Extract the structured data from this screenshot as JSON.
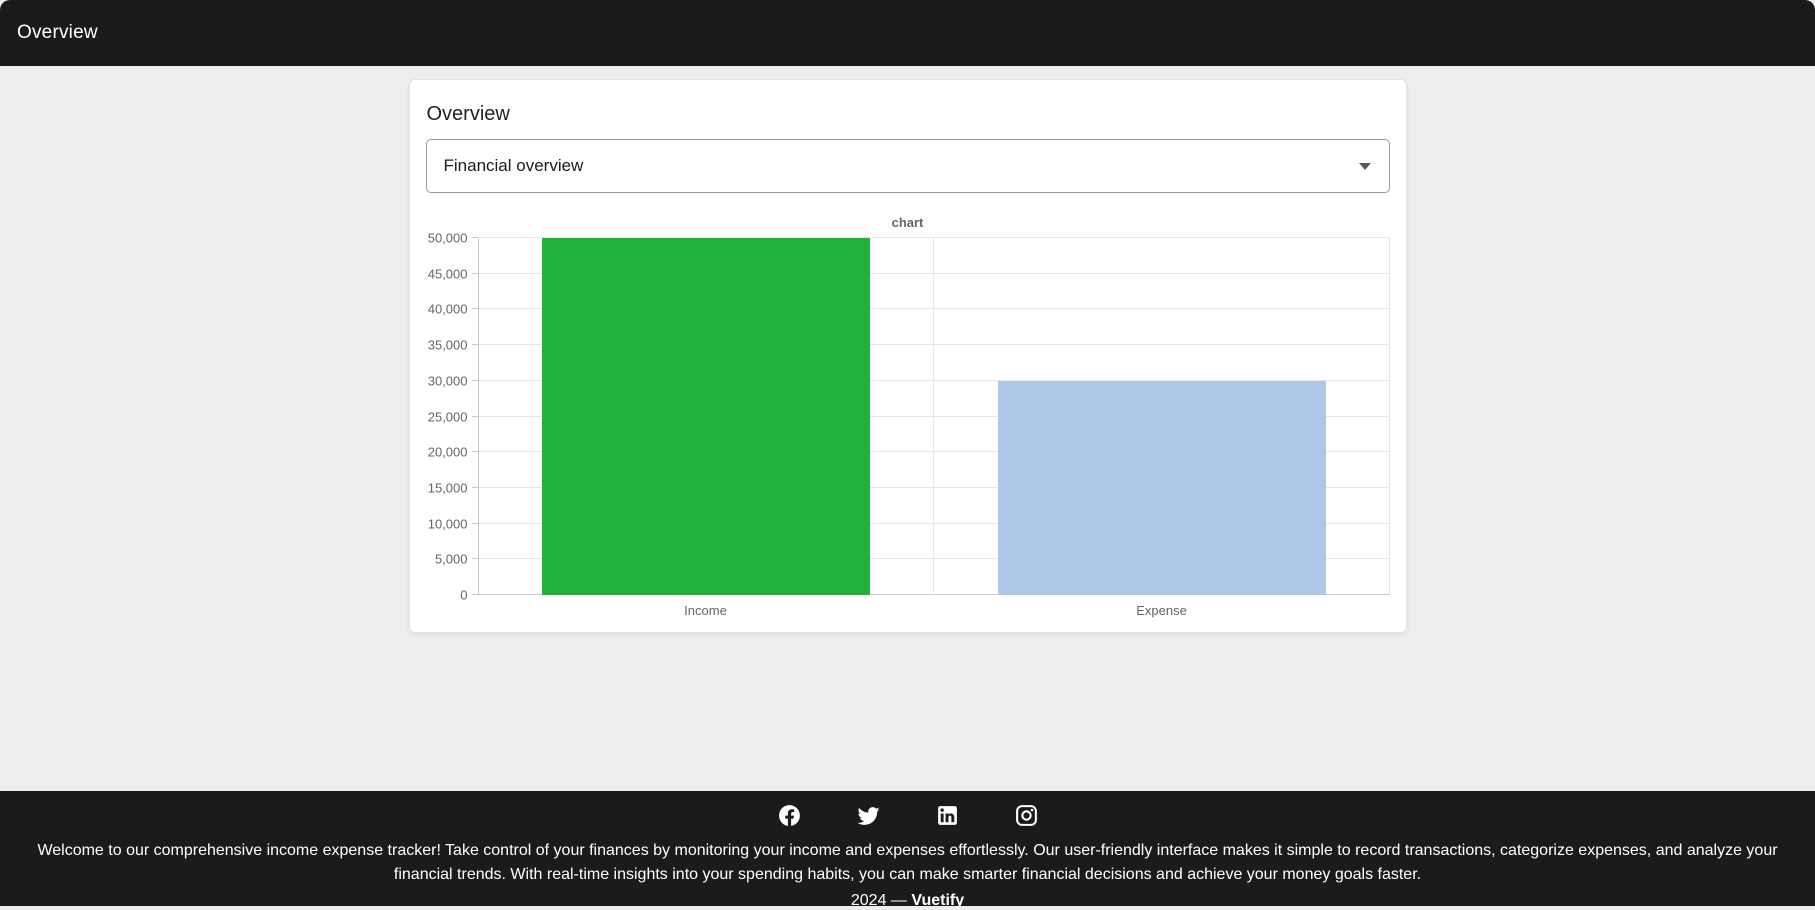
{
  "header": {
    "title": "Overview"
  },
  "card": {
    "title": "Overview",
    "select": {
      "value": "Financial overview"
    }
  },
  "chart_data": {
    "type": "bar",
    "title": "chart",
    "categories": [
      "Income",
      "Expense"
    ],
    "values": [
      50000,
      30000
    ],
    "bar_colors": [
      "#21b13c",
      "#aec7e8"
    ],
    "xlabel": "",
    "ylabel": "",
    "ylim": [
      0,
      50000
    ],
    "ytick_step": 5000,
    "ytick_labels": [
      "0",
      "5,000",
      "10,000",
      "15,000",
      "20,000",
      "25,000",
      "30,000",
      "35,000",
      "40,000",
      "45,000",
      "50,000"
    ],
    "grid": true,
    "legend_position": "none"
  },
  "footer": {
    "social_icons": [
      "facebook-icon",
      "twitter-icon",
      "linkedin-icon",
      "instagram-icon"
    ],
    "description": "Welcome to our comprehensive income expense tracker! Take control of your finances by monitoring your income and expenses effortlessly. Our user-friendly interface makes it simple to record transactions, categorize expenses, and analyze your financial trends. With real-time insights into your spending habits, you can make smarter financial decisions and achieve your money goals faster.",
    "copyright_year": "2024",
    "separator": "—",
    "brand": "Vuetify"
  },
  "colors": {
    "bar_bg": "#1b1b1b",
    "page_bg": "#eeeeee",
    "card_bg": "#ffffff",
    "grid_line": "#e7e7e7",
    "axis_text": "#666666"
  }
}
